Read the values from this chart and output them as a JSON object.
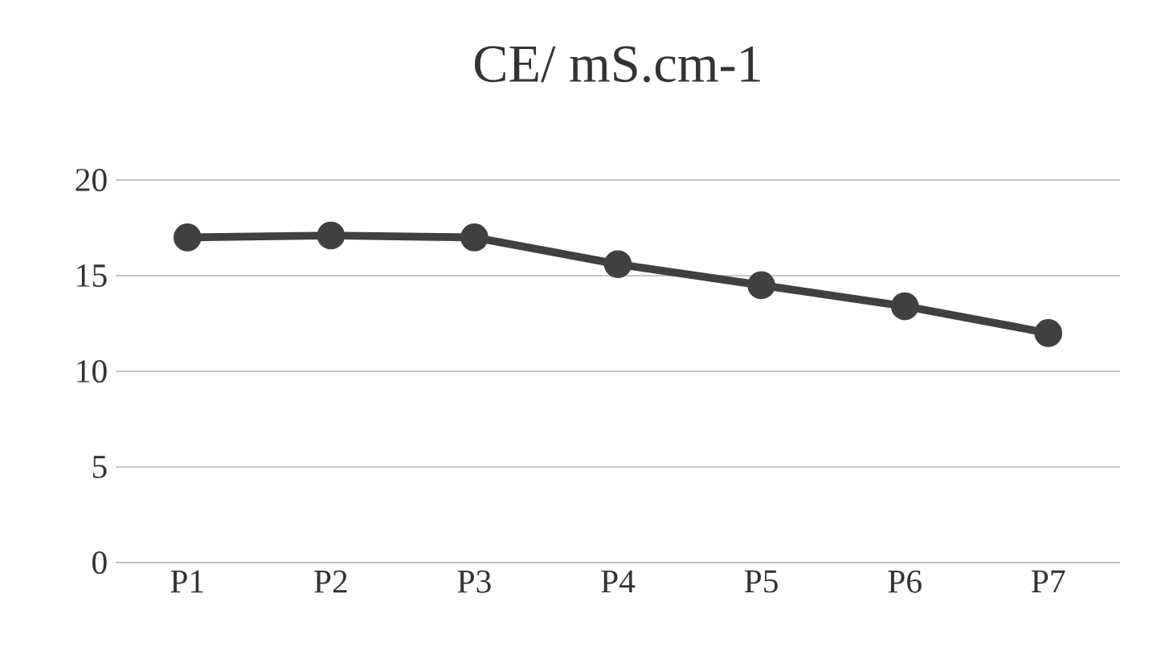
{
  "chart_data": {
    "type": "line",
    "title": "CE/ mS.cm-1",
    "categories": [
      "P1",
      "P2",
      "P3",
      "P4",
      "P5",
      "P6",
      "P7"
    ],
    "series": [
      {
        "color": "#404040",
        "values": [
          17.0,
          17.1,
          17.0,
          15.6,
          14.5,
          13.4,
          12.0
        ]
      }
    ],
    "ylim": [
      0,
      20
    ],
    "yticks": [
      0,
      5,
      10,
      15,
      20
    ],
    "grid": "y",
    "marker": "circle",
    "line_style": "solid"
  }
}
